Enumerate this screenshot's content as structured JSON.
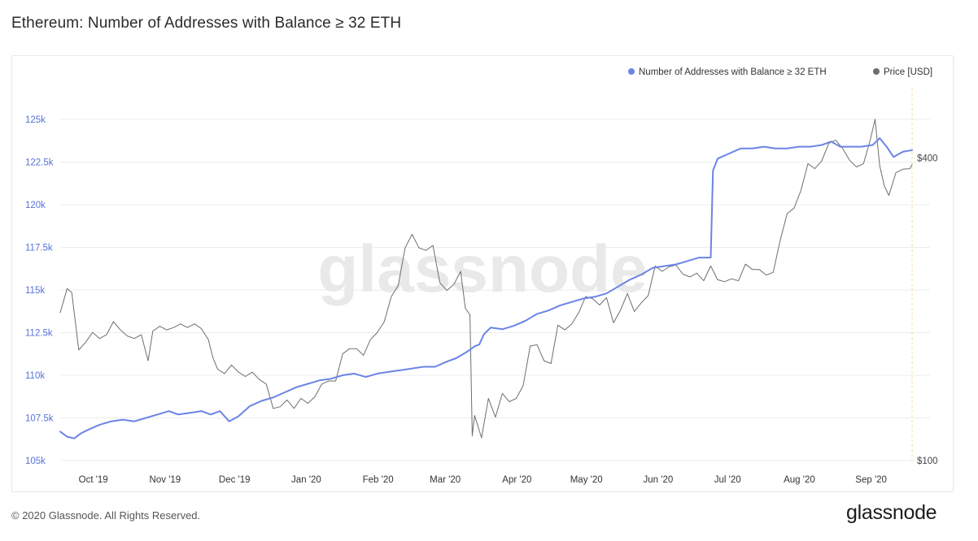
{
  "page": {
    "title": "Ethereum: Number of Addresses with Balance ≥ 32 ETH",
    "footer": "© 2020 Glassnode. All Rights Reserved.",
    "watermark": "glassnode",
    "logo": "glassnode"
  },
  "colors": {
    "addresses": "#6b84e6",
    "price": "#6e6e6e",
    "grid": "#ececec",
    "left_axis": "#5873d9",
    "right_axis": "#444444"
  },
  "chart_data": {
    "type": "line",
    "title": "Ethereum: Number of Addresses with Balance ≥ 32 ETH",
    "legend": {
      "placement": "top-right"
    },
    "grid": true,
    "x_range": [
      "2019-09-16",
      "2020-09-18"
    ],
    "x_ticks": [
      {
        "date": "2019-10-01",
        "label": "Oct '19"
      },
      {
        "date": "2019-11-01",
        "label": "Nov '19"
      },
      {
        "date": "2019-12-01",
        "label": "Dec '19"
      },
      {
        "date": "2020-01-01",
        "label": "Jan '20"
      },
      {
        "date": "2020-02-01",
        "label": "Feb '20"
      },
      {
        "date": "2020-03-01",
        "label": "Mar '20"
      },
      {
        "date": "2020-04-01",
        "label": "Apr '20"
      },
      {
        "date": "2020-05-01",
        "label": "May '20"
      },
      {
        "date": "2020-06-01",
        "label": "Jun '20"
      },
      {
        "date": "2020-07-01",
        "label": "Jul '20"
      },
      {
        "date": "2020-08-01",
        "label": "Aug '20"
      },
      {
        "date": "2020-09-01",
        "label": "Sep '20"
      }
    ],
    "y_left": {
      "scale": "linear",
      "range": [
        105000,
        125000
      ],
      "ticks": [
        {
          "value": 105000,
          "label": "105k"
        },
        {
          "value": 107500,
          "label": "107.5k"
        },
        {
          "value": 110000,
          "label": "110k"
        },
        {
          "value": 112500,
          "label": "112.5k"
        },
        {
          "value": 115000,
          "label": "115k"
        },
        {
          "value": 117500,
          "label": "117.5k"
        },
        {
          "value": 120000,
          "label": "120k"
        },
        {
          "value": 122500,
          "label": "122.5k"
        },
        {
          "value": 125000,
          "label": "125k"
        }
      ]
    },
    "y_right": {
      "scale": "log",
      "range": [
        100,
        550
      ],
      "ticks": [
        {
          "value": 100,
          "label": "$100"
        },
        {
          "value": 400,
          "label": "$400"
        }
      ]
    },
    "series": [
      {
        "name": "Number of Addresses with Balance ≥ 32 ETH",
        "axis": "left",
        "color": "#6b84e6",
        "points": [
          [
            "2019-09-16",
            106700
          ],
          [
            "2019-09-19",
            106400
          ],
          [
            "2019-09-22",
            106300
          ],
          [
            "2019-09-25",
            106600
          ],
          [
            "2019-09-28",
            106800
          ],
          [
            "2019-10-03",
            107100
          ],
          [
            "2019-10-08",
            107300
          ],
          [
            "2019-10-13",
            107400
          ],
          [
            "2019-10-18",
            107300
          ],
          [
            "2019-10-23",
            107500
          ],
          [
            "2019-10-28",
            107700
          ],
          [
            "2019-11-02",
            107900
          ],
          [
            "2019-11-06",
            107700
          ],
          [
            "2019-11-11",
            107800
          ],
          [
            "2019-11-16",
            107900
          ],
          [
            "2019-11-20",
            107700
          ],
          [
            "2019-11-24",
            107900
          ],
          [
            "2019-11-28",
            107300
          ],
          [
            "2019-12-02",
            107600
          ],
          [
            "2019-12-07",
            108200
          ],
          [
            "2019-12-12",
            108500
          ],
          [
            "2019-12-17",
            108700
          ],
          [
            "2019-12-22",
            109000
          ],
          [
            "2019-12-27",
            109300
          ],
          [
            "2020-01-01",
            109500
          ],
          [
            "2020-01-06",
            109700
          ],
          [
            "2020-01-11",
            109800
          ],
          [
            "2020-01-16",
            110000
          ],
          [
            "2020-01-21",
            110100
          ],
          [
            "2020-01-26",
            109900
          ],
          [
            "2020-01-31",
            110100
          ],
          [
            "2020-02-05",
            110200
          ],
          [
            "2020-02-10",
            110300
          ],
          [
            "2020-02-15",
            110400
          ],
          [
            "2020-02-20",
            110500
          ],
          [
            "2020-02-25",
            110500
          ],
          [
            "2020-03-01",
            110800
          ],
          [
            "2020-03-05",
            111000
          ],
          [
            "2020-03-10",
            111400
          ],
          [
            "2020-03-13",
            111700
          ],
          [
            "2020-03-15",
            111800
          ],
          [
            "2020-03-17",
            112400
          ],
          [
            "2020-03-20",
            112800
          ],
          [
            "2020-03-25",
            112700
          ],
          [
            "2020-03-30",
            112900
          ],
          [
            "2020-04-04",
            113200
          ],
          [
            "2020-04-09",
            113600
          ],
          [
            "2020-04-14",
            113800
          ],
          [
            "2020-04-19",
            114100
          ],
          [
            "2020-04-24",
            114300
          ],
          [
            "2020-04-29",
            114500
          ],
          [
            "2020-05-04",
            114600
          ],
          [
            "2020-05-09",
            114800
          ],
          [
            "2020-05-14",
            115200
          ],
          [
            "2020-05-19",
            115600
          ],
          [
            "2020-05-24",
            115900
          ],
          [
            "2020-05-29",
            116300
          ],
          [
            "2020-06-03",
            116400
          ],
          [
            "2020-06-08",
            116500
          ],
          [
            "2020-06-13",
            116700
          ],
          [
            "2020-06-18",
            116900
          ],
          [
            "2020-06-23",
            116900
          ],
          [
            "2020-06-24",
            122000
          ],
          [
            "2020-06-26",
            122700
          ],
          [
            "2020-07-01",
            123000
          ],
          [
            "2020-07-06",
            123300
          ],
          [
            "2020-07-11",
            123300
          ],
          [
            "2020-07-16",
            123400
          ],
          [
            "2020-07-21",
            123300
          ],
          [
            "2020-07-26",
            123300
          ],
          [
            "2020-07-31",
            123400
          ],
          [
            "2020-08-05",
            123400
          ],
          [
            "2020-08-10",
            123500
          ],
          [
            "2020-08-14",
            123700
          ],
          [
            "2020-08-18",
            123400
          ],
          [
            "2020-08-22",
            123400
          ],
          [
            "2020-08-27",
            123400
          ],
          [
            "2020-09-01",
            123500
          ],
          [
            "2020-09-04",
            123900
          ],
          [
            "2020-09-07",
            123400
          ],
          [
            "2020-09-10",
            122800
          ],
          [
            "2020-09-14",
            123100
          ],
          [
            "2020-09-18",
            123200
          ]
        ]
      },
      {
        "name": "Price [USD]",
        "axis": "right",
        "color": "#6e6e6e",
        "points": [
          [
            "2019-09-16",
            197
          ],
          [
            "2019-09-19",
            220
          ],
          [
            "2019-09-21",
            216
          ],
          [
            "2019-09-24",
            166
          ],
          [
            "2019-09-27",
            172
          ],
          [
            "2019-09-30",
            180
          ],
          [
            "2019-10-03",
            175
          ],
          [
            "2019-10-06",
            178
          ],
          [
            "2019-10-09",
            189
          ],
          [
            "2019-10-12",
            182
          ],
          [
            "2019-10-15",
            177
          ],
          [
            "2019-10-18",
            175
          ],
          [
            "2019-10-21",
            178
          ],
          [
            "2019-10-24",
            158
          ],
          [
            "2019-10-26",
            181
          ],
          [
            "2019-10-29",
            185
          ],
          [
            "2019-11-01",
            182
          ],
          [
            "2019-11-04",
            184
          ],
          [
            "2019-11-07",
            187
          ],
          [
            "2019-11-10",
            184
          ],
          [
            "2019-11-13",
            187
          ],
          [
            "2019-11-16",
            183
          ],
          [
            "2019-11-19",
            174
          ],
          [
            "2019-11-21",
            160
          ],
          [
            "2019-11-23",
            152
          ],
          [
            "2019-11-26",
            149
          ],
          [
            "2019-11-29",
            155
          ],
          [
            "2019-12-02",
            150
          ],
          [
            "2019-12-05",
            147
          ],
          [
            "2019-12-08",
            150
          ],
          [
            "2019-12-11",
            145
          ],
          [
            "2019-12-14",
            142
          ],
          [
            "2019-12-17",
            127
          ],
          [
            "2019-12-20",
            128
          ],
          [
            "2019-12-23",
            132
          ],
          [
            "2019-12-26",
            127
          ],
          [
            "2019-12-29",
            133
          ],
          [
            "2020-01-01",
            130
          ],
          [
            "2020-01-04",
            134
          ],
          [
            "2020-01-07",
            142
          ],
          [
            "2020-01-10",
            144
          ],
          [
            "2020-01-13",
            144
          ],
          [
            "2020-01-16",
            163
          ],
          [
            "2020-01-19",
            167
          ],
          [
            "2020-01-22",
            167
          ],
          [
            "2020-01-25",
            162
          ],
          [
            "2020-01-28",
            174
          ],
          [
            "2020-01-31",
            180
          ],
          [
            "2020-02-03",
            189
          ],
          [
            "2020-02-06",
            212
          ],
          [
            "2020-02-09",
            223
          ],
          [
            "2020-02-12",
            265
          ],
          [
            "2020-02-15",
            282
          ],
          [
            "2020-02-18",
            265
          ],
          [
            "2020-02-21",
            262
          ],
          [
            "2020-02-24",
            268
          ],
          [
            "2020-02-27",
            226
          ],
          [
            "2020-03-01",
            218
          ],
          [
            "2020-03-04",
            224
          ],
          [
            "2020-03-07",
            238
          ],
          [
            "2020-03-09",
            201
          ],
          [
            "2020-03-11",
            195
          ],
          [
            "2020-03-12",
            112
          ],
          [
            "2020-03-13",
            123
          ],
          [
            "2020-03-16",
            111
          ],
          [
            "2020-03-19",
            133
          ],
          [
            "2020-03-22",
            122
          ],
          [
            "2020-03-25",
            136
          ],
          [
            "2020-03-28",
            131
          ],
          [
            "2020-03-31",
            133
          ],
          [
            "2020-04-03",
            141
          ],
          [
            "2020-04-06",
            169
          ],
          [
            "2020-04-09",
            170
          ],
          [
            "2020-04-12",
            158
          ],
          [
            "2020-04-15",
            156
          ],
          [
            "2020-04-18",
            186
          ],
          [
            "2020-04-21",
            182
          ],
          [
            "2020-04-24",
            187
          ],
          [
            "2020-04-27",
            197
          ],
          [
            "2020-04-30",
            212
          ],
          [
            "2020-05-03",
            210
          ],
          [
            "2020-05-06",
            204
          ],
          [
            "2020-05-09",
            211
          ],
          [
            "2020-05-12",
            188
          ],
          [
            "2020-05-15",
            199
          ],
          [
            "2020-05-18",
            215
          ],
          [
            "2020-05-21",
            198
          ],
          [
            "2020-05-24",
            206
          ],
          [
            "2020-05-27",
            213
          ],
          [
            "2020-05-30",
            244
          ],
          [
            "2020-06-02",
            238
          ],
          [
            "2020-06-05",
            243
          ],
          [
            "2020-06-08",
            245
          ],
          [
            "2020-06-11",
            235
          ],
          [
            "2020-06-14",
            232
          ],
          [
            "2020-06-17",
            236
          ],
          [
            "2020-06-20",
            228
          ],
          [
            "2020-06-23",
            244
          ],
          [
            "2020-06-26",
            229
          ],
          [
            "2020-06-29",
            227
          ],
          [
            "2020-07-02",
            230
          ],
          [
            "2020-07-05",
            228
          ],
          [
            "2020-07-08",
            246
          ],
          [
            "2020-07-11",
            240
          ],
          [
            "2020-07-14",
            240
          ],
          [
            "2020-07-17",
            234
          ],
          [
            "2020-07-20",
            237
          ],
          [
            "2020-07-23",
            274
          ],
          [
            "2020-07-26",
            310
          ],
          [
            "2020-07-29",
            318
          ],
          [
            "2020-08-01",
            345
          ],
          [
            "2020-08-04",
            390
          ],
          [
            "2020-08-07",
            381
          ],
          [
            "2020-08-10",
            395
          ],
          [
            "2020-08-13",
            428
          ],
          [
            "2020-08-16",
            434
          ],
          [
            "2020-08-19",
            418
          ],
          [
            "2020-08-22",
            396
          ],
          [
            "2020-08-25",
            384
          ],
          [
            "2020-08-28",
            390
          ],
          [
            "2020-08-31",
            436
          ],
          [
            "2020-09-02",
            478
          ],
          [
            "2020-09-04",
            386
          ],
          [
            "2020-09-06",
            352
          ],
          [
            "2020-09-08",
            337
          ],
          [
            "2020-09-11",
            374
          ],
          [
            "2020-09-14",
            380
          ],
          [
            "2020-09-17",
            381
          ],
          [
            "2020-09-18",
            388
          ]
        ]
      }
    ]
  }
}
